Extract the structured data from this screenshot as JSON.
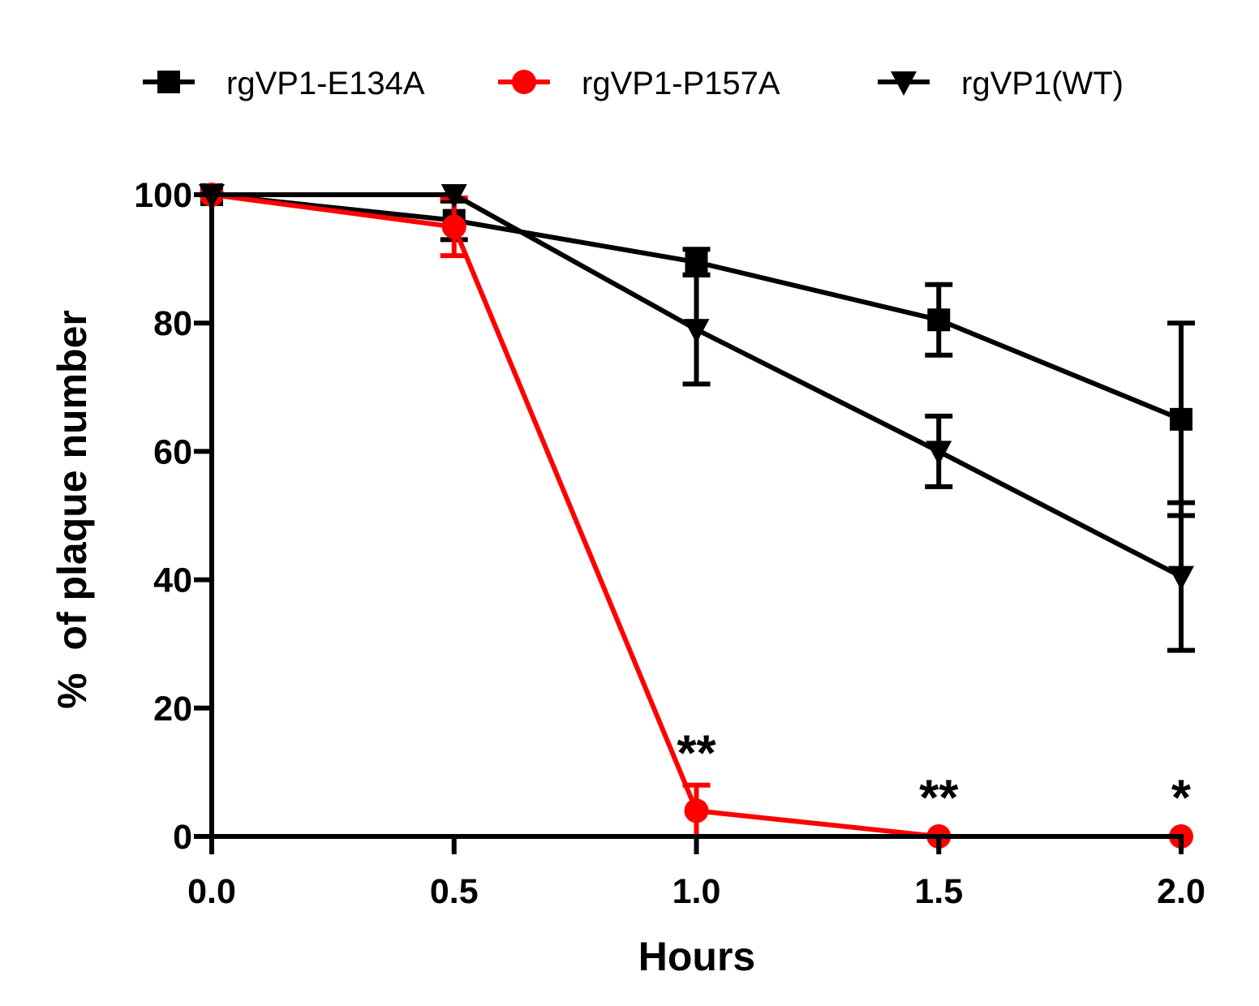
{
  "chart_data": {
    "type": "line",
    "title": "",
    "xlabel": "Hours",
    "ylabel": "%  of plaque number",
    "x": [
      0.0,
      0.5,
      1.0,
      1.5,
      2.0
    ],
    "x_tick_labels": [
      "0.0",
      "0.5",
      "1.0",
      "1.5",
      "2.0"
    ],
    "y_ticks": [
      0,
      20,
      40,
      60,
      80,
      100
    ],
    "y_tick_labels": [
      "0",
      "20",
      "40",
      "60",
      "80",
      "100"
    ],
    "xlim": [
      0.0,
      2.0
    ],
    "ylim": [
      0,
      100
    ],
    "grid": false,
    "legend_position": "top",
    "series": [
      {
        "name": "rgVP1-E134A",
        "marker": "square",
        "color": "#000000",
        "values": [
          100,
          96,
          89.5,
          80.5,
          65
        ],
        "errors": [
          0,
          3,
          2,
          5.5,
          15
        ]
      },
      {
        "name": "rgVP1-P157A",
        "marker": "circle",
        "color": "#ff0000",
        "values": [
          100,
          95,
          4,
          0,
          0
        ],
        "errors": [
          0,
          4.5,
          4,
          0,
          0
        ]
      },
      {
        "name": "rgVP1(WT)",
        "marker": "triangle-down",
        "color": "#000000",
        "values": [
          100,
          100,
          79,
          60,
          40.5
        ],
        "errors": [
          0,
          0,
          8.5,
          5.5,
          11.5
        ]
      }
    ],
    "annotations": [
      {
        "x": 1.0,
        "y": 15,
        "text": "**"
      },
      {
        "x": 1.5,
        "y": 8,
        "text": "**"
      },
      {
        "x": 2.0,
        "y": 8,
        "text": "*"
      }
    ]
  }
}
